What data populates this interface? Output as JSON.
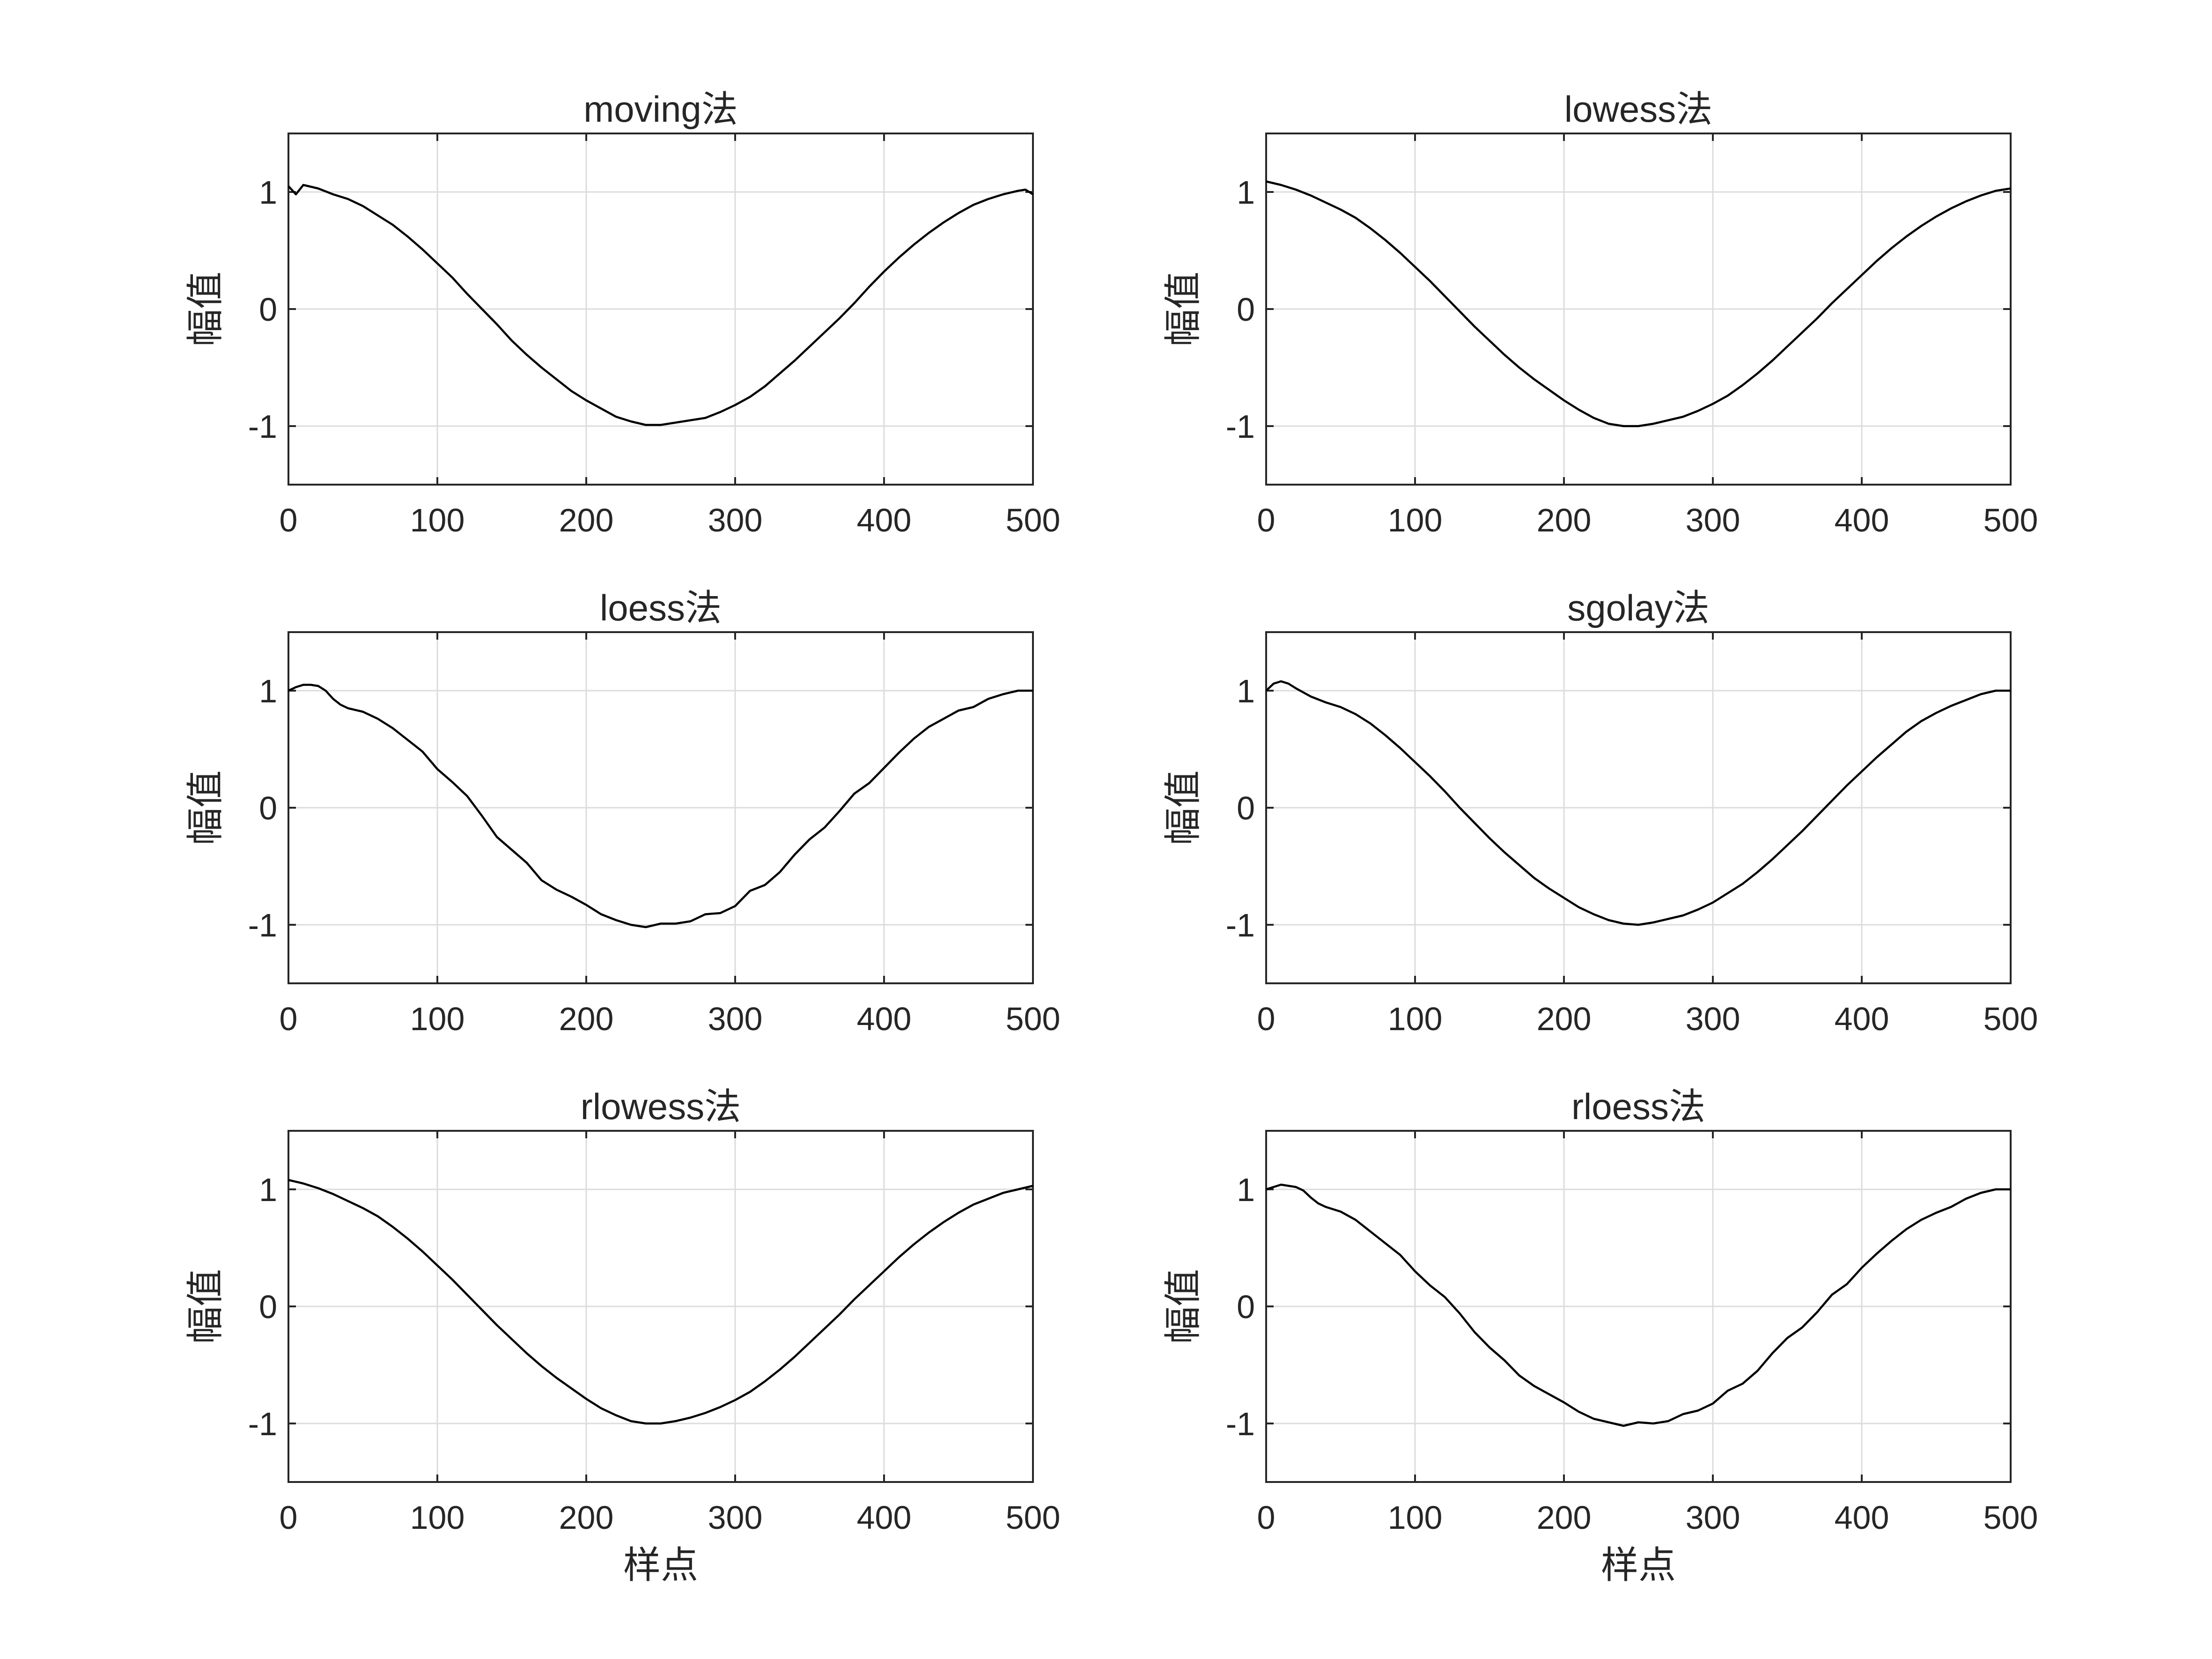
{
  "figure": {
    "layout": "3 rows x 2 columns"
  },
  "chart_data": [
    {
      "type": "line",
      "title": "moving法",
      "xlabel": "",
      "ylabel": "幅值",
      "xlim": [
        0,
        500
      ],
      "ylim": [
        -1.5,
        1.5
      ],
      "xticks": [
        "0",
        "100",
        "200",
        "300",
        "400",
        "500"
      ],
      "yticks": [
        "-1",
        "0",
        "1"
      ],
      "grid": true,
      "x": [
        0,
        5,
        10,
        20,
        30,
        40,
        50,
        60,
        70,
        80,
        90,
        100,
        110,
        120,
        130,
        140,
        150,
        160,
        170,
        180,
        190,
        200,
        210,
        220,
        230,
        240,
        250,
        260,
        270,
        280,
        290,
        300,
        310,
        320,
        330,
        340,
        350,
        360,
        370,
        380,
        390,
        400,
        410,
        420,
        430,
        440,
        450,
        460,
        470,
        480,
        490,
        495,
        500
      ],
      "y": [
        1.05,
        0.98,
        1.06,
        1.03,
        0.98,
        0.94,
        0.88,
        0.8,
        0.72,
        0.62,
        0.51,
        0.39,
        0.27,
        0.13,
        0.0,
        -0.13,
        -0.27,
        -0.39,
        -0.5,
        -0.6,
        -0.7,
        -0.78,
        -0.85,
        -0.92,
        -0.96,
        -0.99,
        -0.99,
        -0.97,
        -0.95,
        -0.93,
        -0.88,
        -0.82,
        -0.75,
        -0.66,
        -0.55,
        -0.44,
        -0.32,
        -0.2,
        -0.08,
        0.05,
        0.19,
        0.32,
        0.44,
        0.55,
        0.65,
        0.74,
        0.82,
        0.89,
        0.94,
        0.98,
        1.01,
        1.02,
        0.98
      ]
    },
    {
      "type": "line",
      "title": "lowess法",
      "xlabel": "",
      "ylabel": "幅值",
      "xlim": [
        0,
        500
      ],
      "ylim": [
        -1.5,
        1.5
      ],
      "xticks": [
        "0",
        "100",
        "200",
        "300",
        "400",
        "500"
      ],
      "yticks": [
        "-1",
        "0",
        "1"
      ],
      "grid": true,
      "x": [
        0,
        10,
        20,
        30,
        40,
        50,
        60,
        70,
        80,
        90,
        100,
        110,
        120,
        130,
        140,
        150,
        160,
        170,
        180,
        190,
        200,
        210,
        220,
        230,
        240,
        250,
        260,
        270,
        280,
        290,
        300,
        310,
        320,
        330,
        340,
        350,
        360,
        370,
        380,
        390,
        400,
        410,
        420,
        430,
        440,
        450,
        460,
        470,
        480,
        490,
        500
      ],
      "y": [
        1.09,
        1.06,
        1.02,
        0.97,
        0.91,
        0.85,
        0.78,
        0.69,
        0.59,
        0.48,
        0.36,
        0.24,
        0.11,
        -0.02,
        -0.15,
        -0.27,
        -0.39,
        -0.5,
        -0.6,
        -0.69,
        -0.78,
        -0.86,
        -0.93,
        -0.98,
        -1.0,
        -1.0,
        -0.98,
        -0.95,
        -0.92,
        -0.87,
        -0.81,
        -0.74,
        -0.65,
        -0.55,
        -0.44,
        -0.32,
        -0.2,
        -0.08,
        0.05,
        0.17,
        0.29,
        0.41,
        0.52,
        0.62,
        0.71,
        0.79,
        0.86,
        0.92,
        0.97,
        1.01,
        1.03
      ]
    },
    {
      "type": "line",
      "title": "loess法",
      "xlabel": "",
      "ylabel": "幅值",
      "xlim": [
        0,
        500
      ],
      "ylim": [
        -1.5,
        1.5
      ],
      "xticks": [
        "0",
        "100",
        "200",
        "300",
        "400",
        "500"
      ],
      "yticks": [
        "-1",
        "0",
        "1"
      ],
      "grid": true,
      "x": [
        0,
        5,
        10,
        15,
        20,
        25,
        30,
        35,
        40,
        50,
        60,
        70,
        80,
        90,
        100,
        110,
        120,
        130,
        140,
        150,
        160,
        170,
        180,
        190,
        200,
        210,
        220,
        230,
        240,
        250,
        260,
        270,
        280,
        290,
        300,
        310,
        320,
        330,
        340,
        350,
        360,
        370,
        380,
        390,
        400,
        410,
        420,
        430,
        440,
        450,
        460,
        470,
        480,
        490,
        500
      ],
      "y": [
        1.0,
        1.03,
        1.05,
        1.05,
        1.04,
        1.0,
        0.93,
        0.88,
        0.85,
        0.82,
        0.76,
        0.68,
        0.58,
        0.48,
        0.33,
        0.22,
        0.1,
        -0.07,
        -0.25,
        -0.36,
        -0.47,
        -0.62,
        -0.7,
        -0.76,
        -0.83,
        -0.91,
        -0.96,
        -1.0,
        -1.02,
        -0.99,
        -0.99,
        -0.97,
        -0.91,
        -0.9,
        -0.84,
        -0.71,
        -0.66,
        -0.55,
        -0.4,
        -0.27,
        -0.17,
        -0.03,
        0.12,
        0.21,
        0.34,
        0.47,
        0.59,
        0.69,
        0.76,
        0.83,
        0.86,
        0.93,
        0.97,
        1.0,
        1.0
      ]
    },
    {
      "type": "line",
      "title": "sgolay法",
      "xlabel": "",
      "ylabel": "幅值",
      "xlim": [
        0,
        500
      ],
      "ylim": [
        -1.5,
        1.5
      ],
      "xticks": [
        "0",
        "100",
        "200",
        "300",
        "400",
        "500"
      ],
      "yticks": [
        "-1",
        "0",
        "1"
      ],
      "grid": true,
      "x": [
        0,
        5,
        10,
        15,
        20,
        30,
        40,
        50,
        60,
        70,
        80,
        90,
        100,
        110,
        120,
        130,
        140,
        150,
        160,
        170,
        180,
        190,
        200,
        210,
        220,
        230,
        240,
        250,
        260,
        270,
        280,
        290,
        300,
        310,
        320,
        330,
        340,
        350,
        360,
        370,
        380,
        390,
        400,
        410,
        420,
        430,
        440,
        450,
        460,
        470,
        480,
        490,
        500
      ],
      "y": [
        1.0,
        1.06,
        1.08,
        1.06,
        1.02,
        0.95,
        0.9,
        0.86,
        0.8,
        0.72,
        0.62,
        0.51,
        0.39,
        0.27,
        0.14,
        0.0,
        -0.13,
        -0.26,
        -0.38,
        -0.49,
        -0.6,
        -0.69,
        -0.77,
        -0.85,
        -0.91,
        -0.96,
        -0.99,
        -1.0,
        -0.98,
        -0.95,
        -0.92,
        -0.87,
        -0.81,
        -0.73,
        -0.65,
        -0.55,
        -0.44,
        -0.32,
        -0.2,
        -0.07,
        0.06,
        0.19,
        0.31,
        0.43,
        0.54,
        0.65,
        0.74,
        0.81,
        0.87,
        0.92,
        0.97,
        1.0,
        1.0
      ]
    },
    {
      "type": "line",
      "title": "rlowess法",
      "xlabel": "样点",
      "ylabel": "幅值",
      "xlim": [
        0,
        500
      ],
      "ylim": [
        -1.5,
        1.5
      ],
      "xticks": [
        "0",
        "100",
        "200",
        "300",
        "400",
        "500"
      ],
      "yticks": [
        "-1",
        "0",
        "1"
      ],
      "grid": true,
      "x": [
        0,
        10,
        20,
        30,
        40,
        50,
        60,
        70,
        80,
        90,
        100,
        110,
        120,
        130,
        140,
        150,
        160,
        170,
        180,
        190,
        200,
        210,
        220,
        230,
        240,
        250,
        260,
        270,
        280,
        290,
        300,
        310,
        320,
        330,
        340,
        350,
        360,
        370,
        380,
        390,
        400,
        410,
        420,
        430,
        440,
        450,
        460,
        470,
        480,
        490,
        500
      ],
      "y": [
        1.08,
        1.05,
        1.01,
        0.96,
        0.9,
        0.84,
        0.77,
        0.68,
        0.58,
        0.47,
        0.35,
        0.23,
        0.1,
        -0.03,
        -0.16,
        -0.28,
        -0.4,
        -0.51,
        -0.61,
        -0.7,
        -0.79,
        -0.87,
        -0.93,
        -0.98,
        -1.0,
        -1.0,
        -0.98,
        -0.95,
        -0.91,
        -0.86,
        -0.8,
        -0.73,
        -0.64,
        -0.54,
        -0.43,
        -0.31,
        -0.19,
        -0.07,
        0.06,
        0.18,
        0.3,
        0.42,
        0.53,
        0.63,
        0.72,
        0.8,
        0.87,
        0.92,
        0.97,
        1.0,
        1.03
      ]
    },
    {
      "type": "line",
      "title": "rloess法",
      "xlabel": "样点",
      "ylabel": "幅值",
      "xlim": [
        0,
        500
      ],
      "ylim": [
        -1.5,
        1.5
      ],
      "xticks": [
        "0",
        "100",
        "200",
        "300",
        "400",
        "500"
      ],
      "yticks": [
        "-1",
        "0",
        "1"
      ],
      "grid": true,
      "x": [
        0,
        5,
        10,
        15,
        20,
        25,
        30,
        35,
        40,
        50,
        60,
        70,
        80,
        90,
        100,
        110,
        120,
        130,
        140,
        150,
        160,
        170,
        180,
        190,
        200,
        210,
        220,
        230,
        240,
        250,
        260,
        270,
        280,
        290,
        300,
        310,
        320,
        330,
        340,
        350,
        360,
        370,
        380,
        390,
        400,
        410,
        420,
        430,
        440,
        450,
        460,
        470,
        480,
        490,
        500
      ],
      "y": [
        1.0,
        1.02,
        1.04,
        1.03,
        1.02,
        0.99,
        0.93,
        0.88,
        0.85,
        0.81,
        0.74,
        0.64,
        0.54,
        0.44,
        0.3,
        0.18,
        0.08,
        -0.06,
        -0.22,
        -0.35,
        -0.46,
        -0.59,
        -0.68,
        -0.75,
        -0.82,
        -0.9,
        -0.96,
        -0.99,
        -1.02,
        -0.99,
        -1.0,
        -0.98,
        -0.92,
        -0.89,
        -0.83,
        -0.72,
        -0.66,
        -0.55,
        -0.4,
        -0.27,
        -0.18,
        -0.05,
        0.1,
        0.19,
        0.33,
        0.45,
        0.56,
        0.66,
        0.74,
        0.8,
        0.85,
        0.92,
        0.97,
        1.0,
        1.0
      ]
    }
  ]
}
